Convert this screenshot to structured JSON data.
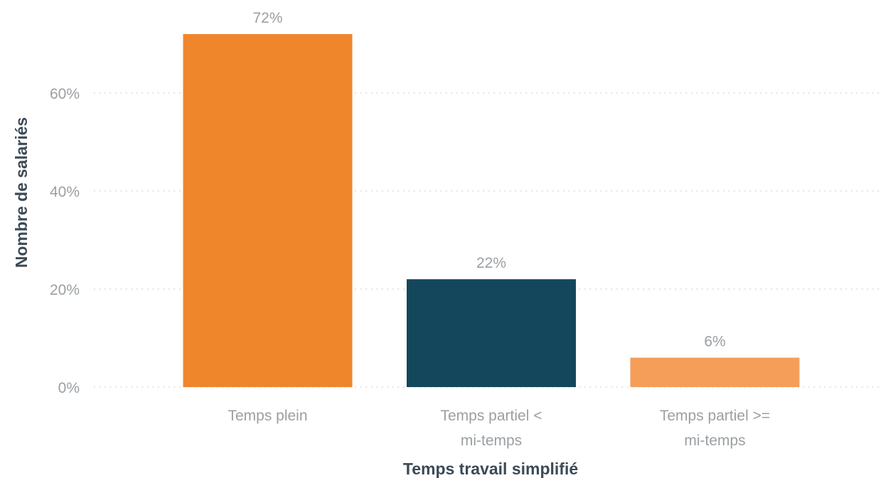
{
  "chart_data": {
    "type": "bar",
    "categories": [
      [
        "Temps plein"
      ],
      [
        "Temps partiel <",
        "mi-temps"
      ],
      [
        "Temps partiel >=",
        "mi-temps"
      ]
    ],
    "values": [
      72,
      22,
      6
    ],
    "value_labels": [
      "72%",
      "22%",
      "6%"
    ],
    "colors": [
      "#f0862b",
      "#14475c",
      "#f59e5a"
    ],
    "xlabel": "Temps travail simplifié",
    "ylabel": "Nombre de salariés",
    "ylim": [
      0,
      72
    ],
    "yticks": [
      0,
      20,
      40,
      60
    ],
    "ytick_labels": [
      "0%",
      "20%",
      "40%",
      "60%"
    ],
    "grid": true,
    "legend": "none"
  }
}
